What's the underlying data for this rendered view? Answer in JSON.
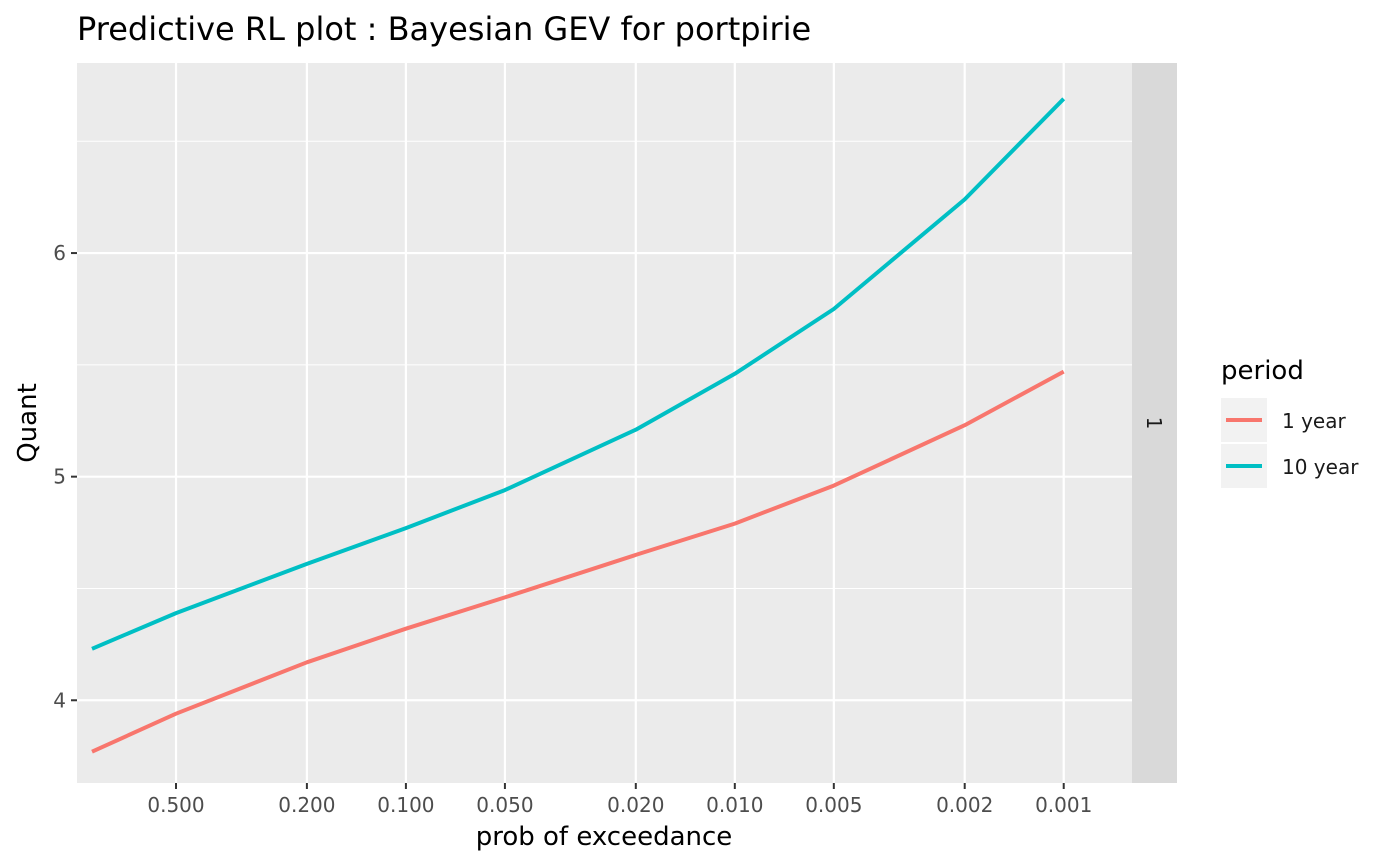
{
  "chart_data": {
    "type": "line",
    "title": "Predictive RL plot : Bayesian GEV for portpirie",
    "xlabel": "prob of exceedance",
    "ylabel": "Quant",
    "x_scale": "log reversed",
    "x_ticks": [
      0.5,
      0.2,
      0.1,
      0.05,
      0.02,
      0.01,
      0.005,
      0.002,
      0.001
    ],
    "x_tick_labels": [
      "0.500",
      "0.200",
      "0.100",
      "0.050",
      "0.020",
      "0.010",
      "0.005",
      "0.002",
      "0.001"
    ],
    "y_ticks": [
      4,
      5,
      6
    ],
    "y_tick_labels": [
      "4",
      "5",
      "6"
    ],
    "xlim": [
      1.0,
      0.00062
    ],
    "ylim": [
      3.63,
      6.85
    ],
    "grid": true,
    "facet_strip": "1",
    "legend": {
      "title": "period",
      "position": "right",
      "entries": [
        "1 year",
        "10 year"
      ]
    },
    "x": [
      0.9,
      0.5,
      0.2,
      0.1,
      0.05,
      0.02,
      0.01,
      0.005,
      0.002,
      0.001
    ],
    "series": [
      {
        "name": "1 year",
        "color": "#F8766D",
        "values": [
          3.77,
          3.94,
          4.17,
          4.32,
          4.46,
          4.65,
          4.79,
          4.96,
          5.23,
          5.47
        ]
      },
      {
        "name": "10 year",
        "color": "#00BFC4",
        "values": [
          4.23,
          4.39,
          4.61,
          4.77,
          4.94,
          5.21,
          5.46,
          5.75,
          6.24,
          6.69
        ]
      }
    ]
  }
}
